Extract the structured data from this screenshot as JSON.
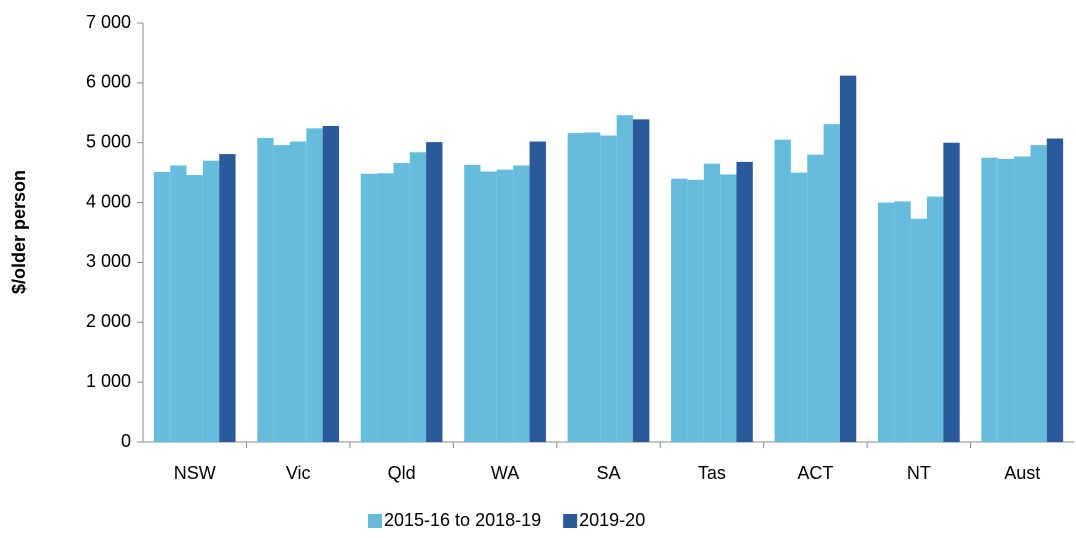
{
  "chart_data": {
    "type": "bar",
    "y_label": "$/older person",
    "categories": [
      "NSW",
      "Vic",
      "Qld",
      "WA",
      "SA",
      "Tas",
      "ACT",
      "NT",
      "Aust"
    ],
    "series": [
      {
        "name": "2015-16 to 2018-19",
        "color": "#66bcdc",
        "values": [
          [
            4510,
            4620,
            4460,
            4700
          ],
          [
            5080,
            4960,
            5020,
            5240
          ],
          [
            4480,
            4490,
            4660,
            4840
          ],
          [
            4630,
            4520,
            4550,
            4620
          ],
          [
            5160,
            5170,
            5120,
            5460
          ],
          [
            4400,
            4380,
            4650,
            4470
          ],
          [
            5050,
            4500,
            4800,
            5310
          ],
          [
            4000,
            4020,
            3730,
            4100
          ],
          [
            4750,
            4730,
            4770,
            4960
          ]
        ]
      },
      {
        "name": "2019-20",
        "color": "#2a5a9b",
        "values": [
          4810,
          5280,
          5010,
          5020,
          5390,
          4680,
          6120,
          5000,
          5070
        ]
      }
    ],
    "ylim": [
      0,
      7000
    ],
    "yticks": [
      0,
      {
        "value": 1000,
        "label": "1 000"
      },
      {
        "value": 2000,
        "label": "2 000"
      },
      {
        "value": 3000,
        "label": "3 000"
      },
      {
        "value": 4000,
        "label": "4 000"
      },
      {
        "value": 5000,
        "label": "5 000"
      },
      {
        "value": 6000,
        "label": "6 000"
      },
      {
        "value": 7000,
        "label": "7 000"
      }
    ],
    "legend": "bottom"
  }
}
